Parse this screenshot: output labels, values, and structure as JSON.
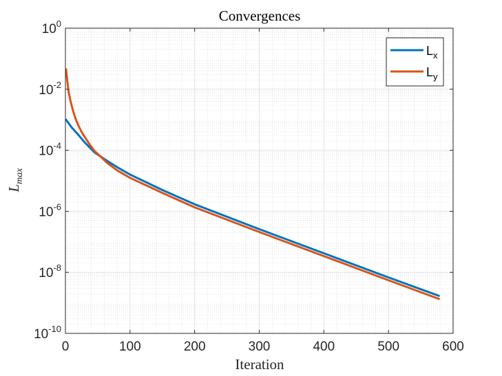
{
  "chart_data": {
    "type": "line",
    "title": "Convergences",
    "xlabel": "Iteration",
    "ylabel": {
      "main": "L",
      "sub": "max"
    },
    "xlim": [
      0,
      600
    ],
    "ylim": [
      1e-10,
      1
    ],
    "yscale": "log",
    "grid": true,
    "minor_grid": true,
    "legend_position": "top-right",
    "x_ticks": [
      {
        "value": 0,
        "label": "0"
      },
      {
        "value": 100,
        "label": "100"
      },
      {
        "value": 200,
        "label": "200"
      },
      {
        "value": 300,
        "label": "300"
      },
      {
        "value": 400,
        "label": "400"
      },
      {
        "value": 500,
        "label": "500"
      },
      {
        "value": 600,
        "label": "600"
      }
    ],
    "y_ticks": [
      {
        "value": 1.0,
        "base": "10",
        "exp": "0"
      },
      {
        "value": 0.01,
        "base": "10",
        "exp": "-2"
      },
      {
        "value": 0.0001,
        "base": "10",
        "exp": "-4"
      },
      {
        "value": 1e-06,
        "base": "10",
        "exp": "-6"
      },
      {
        "value": 1e-08,
        "base": "10",
        "exp": "-8"
      },
      {
        "value": 1e-10,
        "base": "10",
        "exp": "-10"
      }
    ],
    "series": [
      {
        "name": {
          "main": "L",
          "sub": "x"
        },
        "color": "#0072BD",
        "x": [
          1,
          10,
          20,
          30,
          45,
          60,
          80,
          100,
          150,
          200,
          300,
          400,
          500,
          578
        ],
        "y": [
          0.001,
          0.00055,
          0.00032,
          0.00018,
          8.5e-05,
          5.2e-05,
          2.8e-05,
          1.6e-05,
          5e-06,
          1.7e-06,
          2.6e-07,
          4.2e-08,
          6.8e-09,
          1.7e-09
        ]
      },
      {
        "name": {
          "main": "L",
          "sub": "y"
        },
        "color": "#D95319",
        "x": [
          1,
          3,
          5,
          8,
          12,
          16,
          20,
          25,
          30,
          38,
          45,
          55,
          65,
          80,
          100,
          150,
          200,
          300,
          400,
          500,
          578
        ],
        "y": [
          0.045,
          0.018,
          0.008,
          0.004,
          0.0019,
          0.00105,
          0.00065,
          0.0004,
          0.00027,
          0.00015,
          9.5e-05,
          6e-05,
          3.8e-05,
          2.2e-05,
          1.25e-05,
          4e-06,
          1.35e-06,
          2.1e-07,
          3.4e-08,
          5.5e-09,
          1.35e-09
        ]
      }
    ]
  }
}
